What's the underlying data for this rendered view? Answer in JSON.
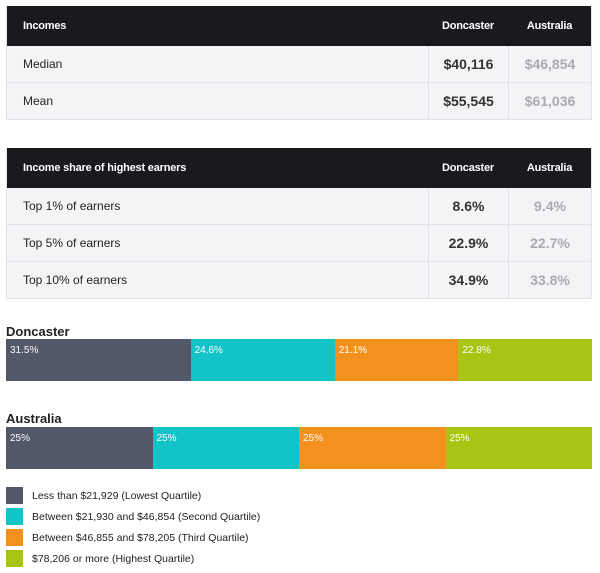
{
  "colors": {
    "lowest": "#525868",
    "second": "#12c4c8",
    "third": "#f4901e",
    "highest": "#a8c414"
  },
  "incomes_table": {
    "header": {
      "label": "Incomes",
      "col1": "Doncaster",
      "col2": "Australia"
    },
    "rows": [
      {
        "label": "Median",
        "doncaster": "$40,116",
        "australia": "$46,854"
      },
      {
        "label": "Mean",
        "doncaster": "$55,545",
        "australia": "$61,036"
      }
    ]
  },
  "share_table": {
    "header": {
      "label": "Income share of highest earners",
      "col1": "Doncaster",
      "col2": "Australia"
    },
    "rows": [
      {
        "label": "Top 1% of earners",
        "doncaster": "8.6%",
        "australia": "9.4%"
      },
      {
        "label": "Top 5% of earners",
        "doncaster": "22.9%",
        "australia": "22.7%"
      },
      {
        "label": "Top 10% of earners",
        "doncaster": "34.9%",
        "australia": "33.8%"
      }
    ]
  },
  "chart_data": {
    "type": "bar",
    "orientation": "horizontal-stacked-100",
    "categories": [
      "Doncaster",
      "Australia"
    ],
    "series": [
      {
        "name": "Less than $21,929 (Lowest Quartile)",
        "color_key": "lowest",
        "values": [
          31.5,
          25
        ],
        "labels": [
          "31.5%",
          "25%"
        ]
      },
      {
        "name": "Between $21,930 and $46,854 (Second Quartile)",
        "color_key": "second",
        "values": [
          24.6,
          25
        ],
        "labels": [
          "24.6%",
          "25%"
        ]
      },
      {
        "name": "Between $46,855 and $78,205 (Third Quartile)",
        "color_key": "third",
        "values": [
          21.1,
          25
        ],
        "labels": [
          "21.1%",
          "25%"
        ]
      },
      {
        "name": "$78,206 or more (Highest Quartile)",
        "color_key": "highest",
        "values": [
          22.8,
          25
        ],
        "labels": [
          "22.8%",
          "25%"
        ]
      }
    ],
    "legend_position": "bottom-left"
  }
}
